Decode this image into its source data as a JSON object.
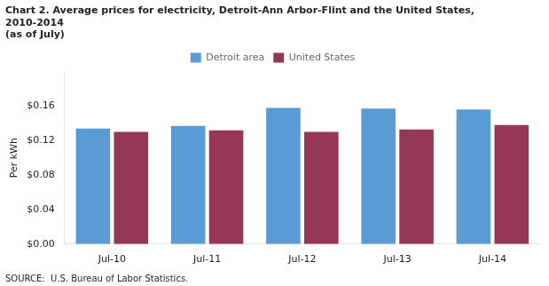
{
  "chart_data": {
    "type": "bar",
    "title": "Chart 2. Average prices for electricity, Detroit-Ann Arbor-Flint and the United States, 2010-2014",
    "subtitle": "(as of July)",
    "ylabel": "Per kWh",
    "annotations": [
      "SOURCE:  U.S. Bureau of Labor Statistics."
    ],
    "categories": [
      "Jul-10",
      "Jul-11",
      "Jul-12",
      "Jul-13",
      "Jul-14"
    ],
    "series": [
      {
        "name": "Detroit area",
        "color": "#5B9BD5",
        "values": [
          0.134,
          0.137,
          0.158,
          0.157,
          0.156
        ]
      },
      {
        "name": "United States",
        "color": "#953757",
        "values": [
          0.13,
          0.132,
          0.13,
          0.133,
          0.138
        ]
      }
    ],
    "ylim": [
      0.0,
      0.2
    ],
    "yticks": [
      {
        "value": 0.0,
        "label": "$0.00"
      },
      {
        "value": 0.04,
        "label": "$0.04"
      },
      {
        "value": 0.08,
        "label": "$0.08"
      },
      {
        "value": 0.12,
        "label": "$0.12"
      },
      {
        "value": 0.16,
        "label": "$0.16"
      }
    ],
    "grid": false,
    "legend": "top"
  }
}
